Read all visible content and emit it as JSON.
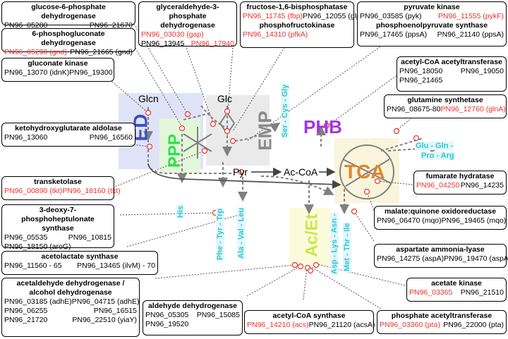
{
  "colors": {
    "ed": "#3b4fc4",
    "ppp": "#2ee04f",
    "emp": "#8a8a8a",
    "phb": "#a335e0",
    "tca": "#e0862e",
    "acet": "#c8e84a",
    "aa": "#2cc6d4",
    "gene_red": "#e8322d"
  },
  "modules": {
    "ed": "ED",
    "ppp": "PPP",
    "emp": "EMP",
    "phb": "PHB",
    "tca": "TCA",
    "acet": "Ac/Et"
  },
  "metabolites": {
    "glcn": "Glcn",
    "glc": "Glc",
    "pyr": "Pyr",
    "accoa": "Ac-CoA"
  },
  "amino_acids": {
    "ser": "Ser - Cys - Gly",
    "his": "His",
    "phe": "Phe - Tyr - Trp",
    "ala": "Ala - Val - Leu",
    "asp": "Asp - Lys - Asn -",
    "met": "Met - Thr - Ile",
    "glu": "Glu - Gln -",
    "pro": "Pro - Arg"
  },
  "boxes": {
    "g6pdh": {
      "title": "glucose-6-phosphate dehydrogenase",
      "g1": "PN96_05280",
      "g2": "PN96_21670"
    },
    "pgdh": {
      "title": "6-phosphogluconate dehydrogenase",
      "g1": "PN96_05290 (gnd)",
      "g2": "PN96_21665 (gnd)"
    },
    "gluk": {
      "title": "gluconate kinase",
      "g1": "PN96_13070 (idnK)",
      "g2": "PN96_19300"
    },
    "kdga": {
      "title": "ketohydroxyglutarate aldolase",
      "g1": "PN96_13060",
      "g2": "PN96_16560"
    },
    "gapdh": {
      "title": "glyceraldehyde-3-phosphate dehydrogenase",
      "g1": "PN96_03030 (gap)",
      "g2": "PN96_13945",
      "g3": "PN96_17940"
    },
    "fbp": {
      "title": "fructose-1,6-bisphosphatase",
      "g1": "PN96_11745 (fbp)",
      "g2": "PN96_12055 (glpX)"
    },
    "pfk": {
      "title": "phosphofructokinase",
      "g1": "PN96_14310 (pfkA)"
    },
    "pyk": {
      "title": "pyruvate kinase",
      "g1": "PN96_03585 (pyk)",
      "g2": "PN96_11555 (pykF)"
    },
    "pps": {
      "title": "phosphoenolpyruvate synthase",
      "g1": "PN96_17465 (ppsA)",
      "g2": "PN96_21140 (ppsA)"
    },
    "acat": {
      "title": "acetyl-CoA acetyltransferase",
      "g1": "PN96_18050",
      "g2": "PN96_19050",
      "g3": "PN96_21465"
    },
    "gs": {
      "title": "glutamine synthetase",
      "g1": "PN96_08675-80",
      "g2": "PN96_12760 (glnA)"
    },
    "tkt": {
      "title": "transketolase",
      "g1": "PN96_00890 (tkt)",
      "g2": "PN96_18160 (tkt)"
    },
    "fum": {
      "title": "fumarate hydratase",
      "g1": "PN96_04250",
      "g2": "PN96_14235"
    },
    "dahp": {
      "title": "3-deoxy-7-phosphoheptulonate synthase",
      "g1": "PN96_05535",
      "g2": "PN96_10815",
      "g3": "PN96_18150 (aroG)"
    },
    "mqo": {
      "title": "malate:quinone oxidoreductase",
      "g1": "PN96_06470 (mqo)",
      "g2": "PN96_19465 (mqo)"
    },
    "als": {
      "title": "acetolactate synthase",
      "g1": "PN96_11560 - 65",
      "g2": "PN96_13465 (ilvM) - 70"
    },
    "asp": {
      "title": "aspartate ammonia-lyase",
      "g1": "PN96_14275 (aspA)",
      "g2": "PN96_19470 (aspA)"
    },
    "adh": {
      "title": "acetaldehyde dehydrogenase / alcohol dehydrogenase",
      "r1a": "PN96_03185 (adhE)",
      "r1b": "PN96_04715 (adhE)",
      "r2a": "PN96_06255",
      "r2b": "PN96_16515",
      "r3a": "PN96_21720",
      "r3b": "PN96_22510 (yiaY)"
    },
    "ald": {
      "title": "aldehyde dehydrogenase",
      "g1": "PN96_05305",
      "g2": "PN96_15085",
      "g3": "PN96_19520"
    },
    "acs": {
      "title": "acetyl-CoA synthase",
      "g1": "PN96_14210 (acs)",
      "g2": "PN96_21120 (acsA)"
    },
    "ack": {
      "title": "acetate kinase",
      "g1": "PN96_03365",
      "g2": "PN96_21510"
    },
    "pta": {
      "title": "phosphate acetyltransferase",
      "g1": "PN96_03360 (pta)",
      "g2": "PN96_22000 (pta)"
    }
  }
}
